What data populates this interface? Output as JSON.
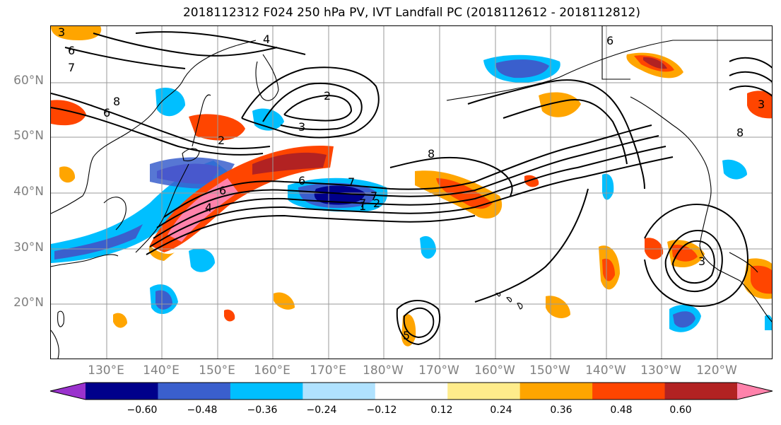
{
  "title": "2018112312 F024 250 hPa PV, IVT Landfall PC (2018112612 - 2018112812)",
  "latitude_labels": [
    "60°N",
    "50°N",
    "40°N",
    "30°N",
    "20°N"
  ],
  "longitude_labels": [
    "130°E",
    "140°E",
    "150°E",
    "160°E",
    "170°E",
    "180°W",
    "170°W",
    "160°W",
    "150°W",
    "140°W",
    "130°W",
    "120°W"
  ],
  "contour_labels": [
    "4",
    "6",
    "7",
    "2",
    "3",
    "6",
    "8",
    "8",
    "2",
    "6",
    "7",
    "7",
    "7",
    "1",
    "2",
    "6",
    "4",
    "3",
    "3",
    "8",
    "5",
    "6",
    "3"
  ],
  "colorbar": {
    "ticks": [
      "−0.60",
      "−0.48",
      "−0.36",
      "−0.24",
      "−0.12",
      "0.12",
      "0.24",
      "0.36",
      "0.48",
      "0.60"
    ],
    "colors": [
      "#9a32cd",
      "#00008b",
      "#3a5fcd",
      "#00bfff",
      "#b0e2ff",
      "#ffffff",
      "#ffec8b",
      "#ffa500",
      "#ff4500",
      "#b22222",
      "#ff82ab"
    ],
    "extend": "both"
  },
  "colors": {
    "grid": "#9a9a9a",
    "coast": "#000000",
    "contour": "#000000",
    "tick_text": "#808080"
  }
}
